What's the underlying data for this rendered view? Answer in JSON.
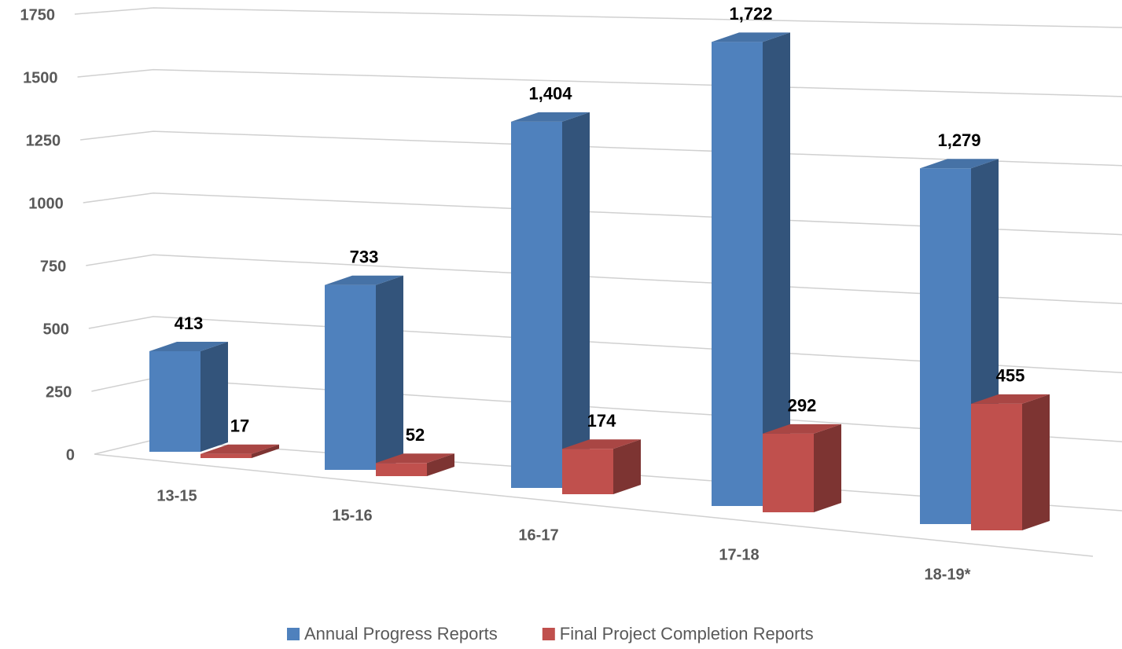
{
  "chart_data": {
    "type": "bar3d",
    "categories": [
      "13-15",
      "15-16",
      "16-17",
      "17-18",
      "18-19*"
    ],
    "series": [
      {
        "name": "Annual Progress Reports",
        "color": "#4f81bd",
        "values": [
          413,
          733,
          1404,
          1722,
          1279
        ],
        "value_labels": [
          "413",
          "733",
          "1,404",
          "1,722",
          "1,279"
        ]
      },
      {
        "name": "Final Project Completion Reports",
        "color": "#c0504d",
        "values": [
          17,
          52,
          174,
          292,
          455
        ],
        "value_labels": [
          "17",
          "52",
          "174",
          "292",
          "455"
        ]
      }
    ],
    "ylim": [
      0,
      1750
    ],
    "yticks": [
      0,
      250,
      500,
      750,
      1000,
      1250,
      1500,
      1750
    ],
    "grid": true,
    "legend": "bottom"
  }
}
